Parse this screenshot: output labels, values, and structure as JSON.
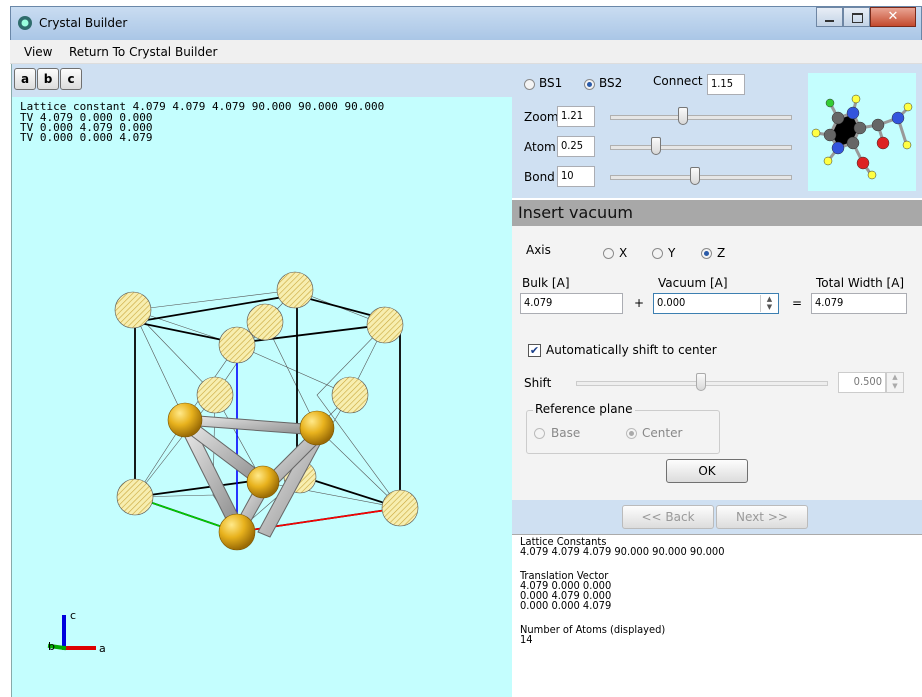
{
  "window": {
    "title": "Crystal Builder"
  },
  "menu": [
    "View",
    "Return To Crystal Builder"
  ],
  "viewer": {
    "axis_buttons": [
      "a",
      "b",
      "c"
    ],
    "info_lines": [
      "Lattice constant 4.079 4.079 4.079 90.000 90.000 90.000",
      "TV 4.079 0.000 0.000",
      "TV 0.000 4.079 0.000",
      "TV 0.000 0.000 4.079"
    ],
    "axis_labels": [
      "c",
      "b",
      "a"
    ]
  },
  "controls": {
    "basis_options": [
      "BS1",
      "BS2"
    ],
    "selected_basis": "BS2",
    "connect_label": "Connect",
    "connect_value": "1.15",
    "sliders": [
      {
        "label": "Zoom",
        "value": "1.21"
      },
      {
        "label": "Atom",
        "value": "0.25"
      },
      {
        "label": "Bond",
        "value": "10"
      }
    ]
  },
  "insert_vacuum": {
    "title": "Insert vacuum",
    "axis_label": "Axis",
    "axis_options": [
      "X",
      "Y",
      "Z"
    ],
    "selected_axis": "Z",
    "bulk_label": "Bulk [A]",
    "bulk_value": "4.079",
    "plus": "+",
    "vacuum_label": "Vacuum [A]",
    "vacuum_value": "0.000",
    "equals": "=",
    "total_label": "Total Width [A]",
    "total_value": "4.079",
    "auto_shift_label": "Automatically shift to center",
    "auto_shift_checked": true,
    "shift_label": "Shift",
    "shift_value": "0.500",
    "reference_plane_label": "Reference plane",
    "reference_options": [
      "Base",
      "Center"
    ],
    "selected_reference": "Center",
    "ok": "OK"
  },
  "navigation": {
    "back": "<< Back",
    "next": "Next >>"
  },
  "output": {
    "sections": [
      {
        "heading": "Lattice Constants",
        "lines": [
          "4.079 4.079 4.079 90.000 90.000 90.000"
        ]
      },
      {
        "heading": "Translation Vector",
        "lines": [
          "4.079 0.000 0.000",
          "0.000 4.079 0.000",
          "0.000 0.000 4.079"
        ]
      },
      {
        "heading": "Number of Atoms (displayed)",
        "lines": [
          "14"
        ]
      }
    ]
  }
}
